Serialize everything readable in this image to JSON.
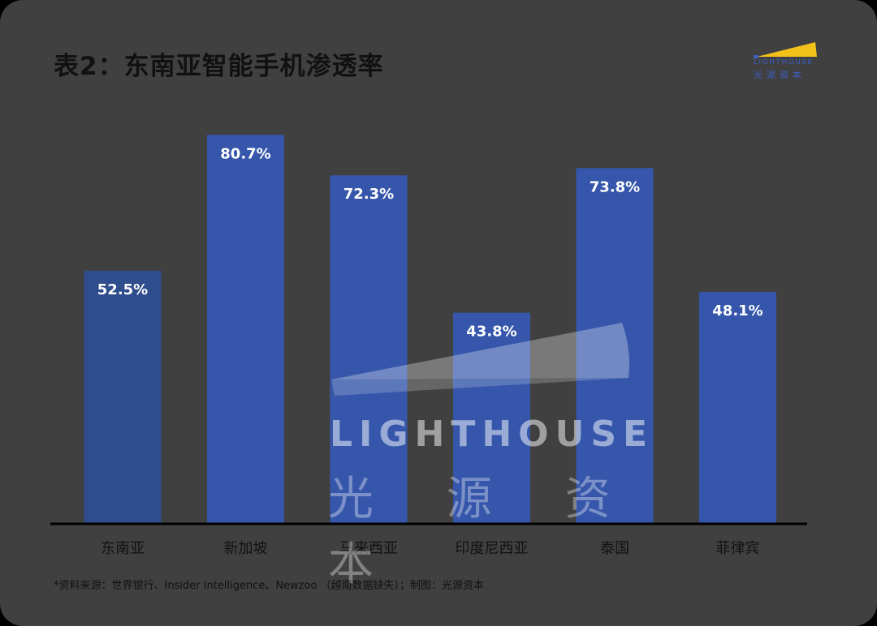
{
  "title": "表2：东南亚智能手机渗透率",
  "logo": {
    "text": "LIGHTHOUSE",
    "cn": "光源资本",
    "color": "#3b5fc4",
    "accent": "#f2c21b"
  },
  "watermark": {
    "text": "LIGHTHOUSE",
    "cn": "光 源 资 本"
  },
  "source": "*资料来源：世界银行、Insider Intelligence、Newzoo （越南数据缺失）；制图：光源资本",
  "colors": {
    "bar": "#3556aa",
    "bar_first": "#2f4c8c",
    "axis": "#000000",
    "label": "#ffffff",
    "category": "#111111"
  },
  "chart_data": {
    "type": "bar",
    "title": "表2：东南亚智能手机渗透率",
    "categories": [
      "东南亚",
      "新加坡",
      "马来西亚",
      "印度尼西亚",
      "泰国",
      "菲律宾"
    ],
    "values": [
      52.5,
      80.7,
      72.3,
      43.8,
      73.8,
      48.1
    ],
    "data_labels": [
      "52.5%",
      "80.7%",
      "72.3%",
      "43.8%",
      "73.8%",
      "48.1%"
    ],
    "unit": "%",
    "ylim": [
      0,
      90
    ],
    "grid": false,
    "legend": "none",
    "xlabel": "",
    "ylabel": ""
  }
}
